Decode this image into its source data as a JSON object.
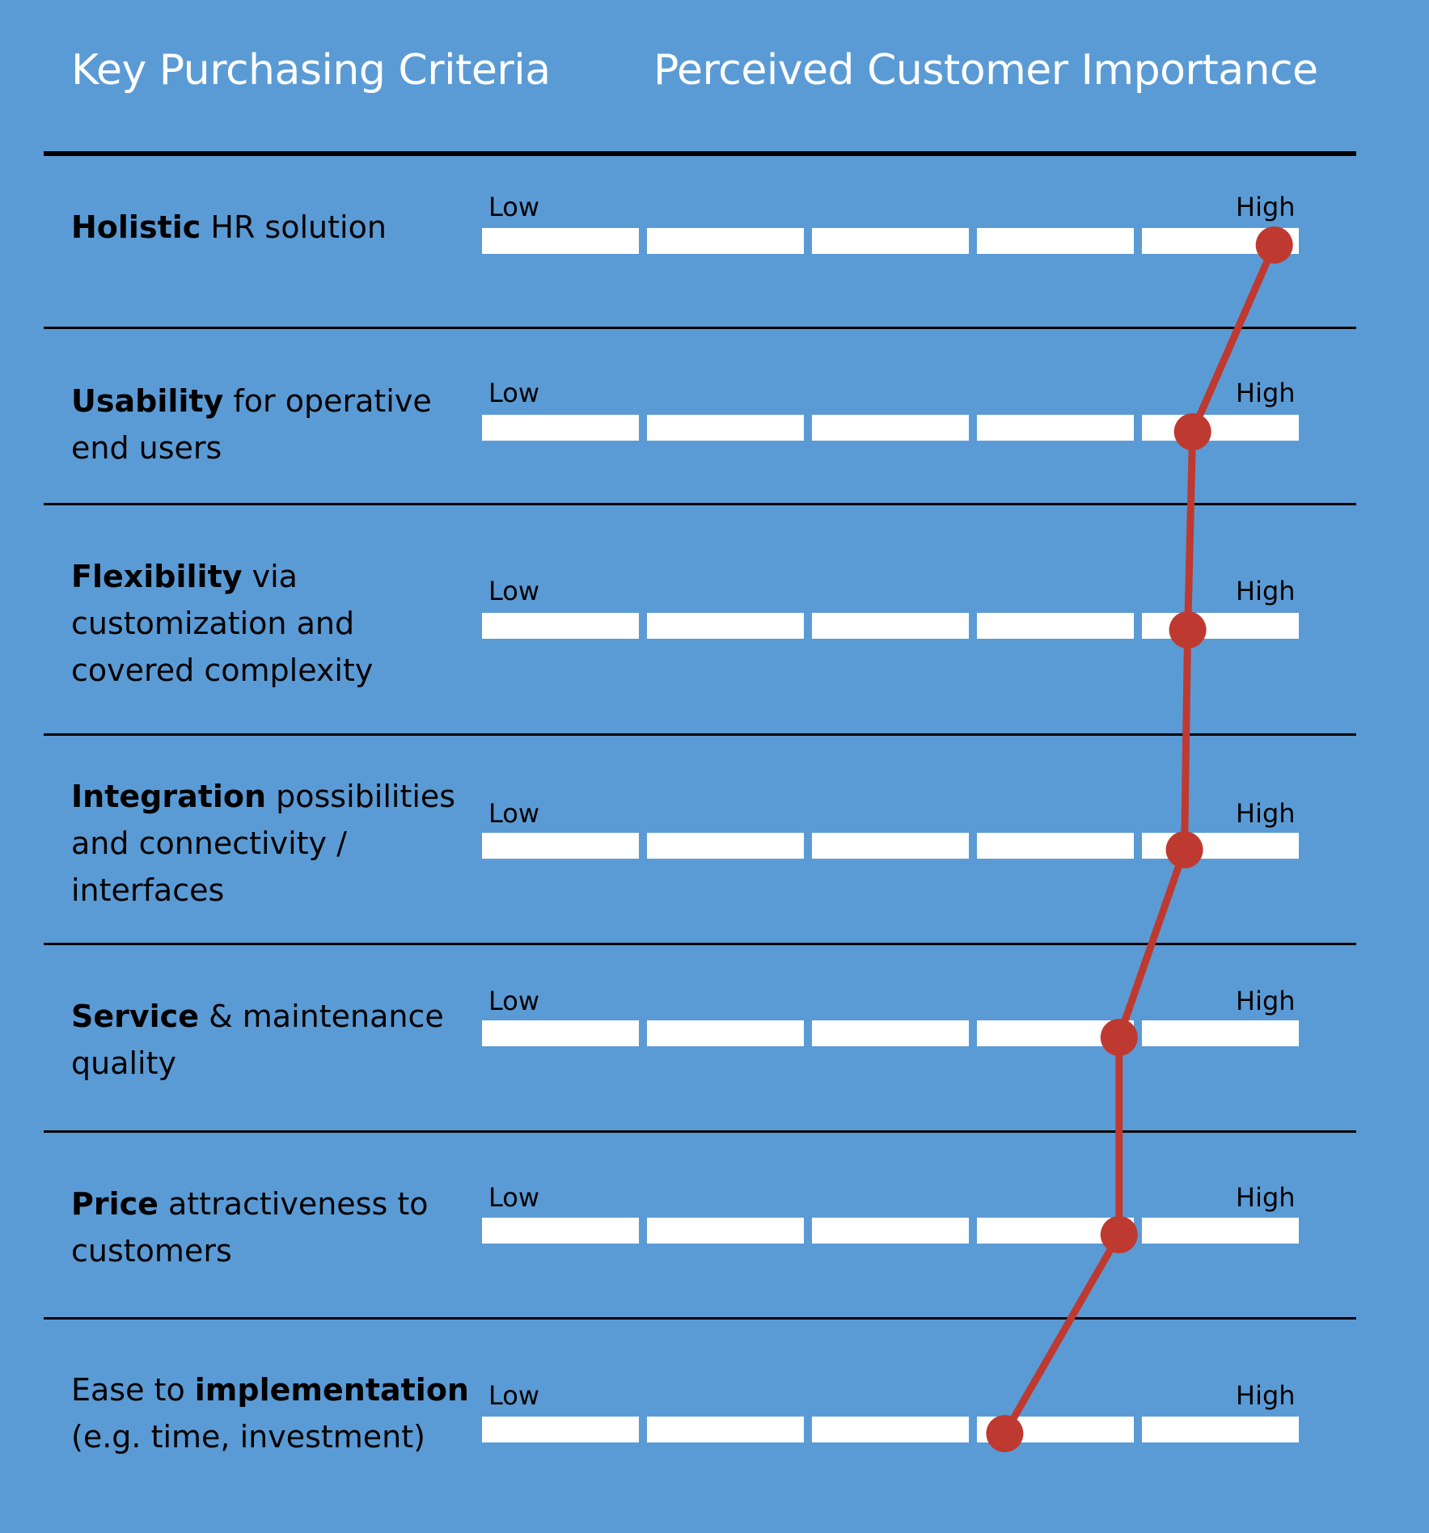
{
  "header": {
    "left_title": "Key Purchasing Criteria",
    "right_title": "Perceived Customer Importance"
  },
  "scale": {
    "low_label": "Low",
    "high_label": "High",
    "segments": 5,
    "min": 0,
    "max": 5
  },
  "rows": [
    {
      "bold": "Holistic",
      "rest": " HR solution",
      "bold_first": true
    },
    {
      "bold": "Usability",
      "rest": " for operative end users",
      "bold_first": true
    },
    {
      "bold": "Flexibility",
      "rest": " via customization and covered complexity",
      "bold_first": true
    },
    {
      "bold": "Integration",
      "rest": " possibilities and connectivity / interfaces",
      "bold_first": true
    },
    {
      "bold": "Service",
      "rest": " & maintenance quality",
      "bold_first": true
    },
    {
      "bold": "Price",
      "rest": " attractiveness to customers",
      "bold_first": true
    },
    {
      "bold": "implementation",
      "pre": "Ease to ",
      "rest": " (e.g. time, investment)",
      "bold_first": false
    }
  ],
  "chart_data": {
    "type": "line",
    "orientation": "horizontal-profile",
    "categories": [
      "Holistic HR solution",
      "Usability for operative end users",
      "Flexibility via customization and covered complexity",
      "Integration possibilities and connectivity / interfaces",
      "Service & maintenance quality",
      "Price attractiveness to customers",
      "Ease to implementation (e.g. time, investment)"
    ],
    "values": [
      4.85,
      4.35,
      4.32,
      4.3,
      3.9,
      3.9,
      3.2
    ],
    "axis_range": [
      0,
      5
    ],
    "axis_min_label": "Low",
    "axis_max_label": "High",
    "series_color": "#be3a31",
    "bar_color": "#ffffff",
    "background_color": "#5b9bd5"
  }
}
